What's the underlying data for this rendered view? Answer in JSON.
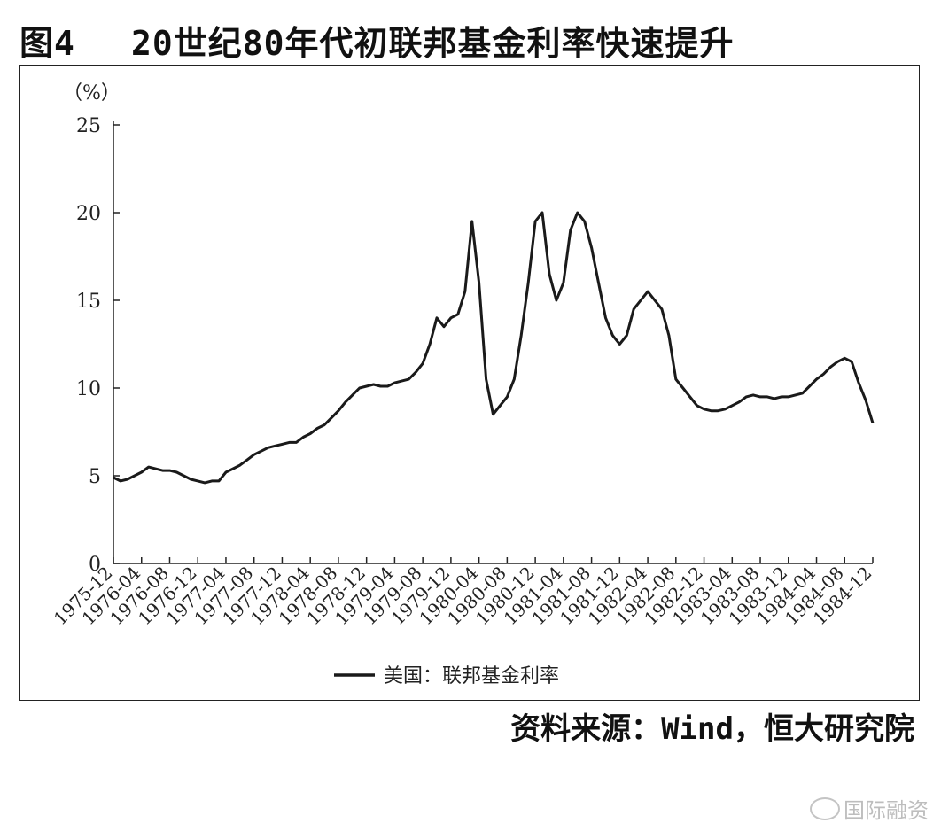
{
  "figure": {
    "label": "图4",
    "title": "20世纪80年代初联邦基金利率快速提升",
    "source": "资料来源：Wind，恒大研究院",
    "watermark": "国际融资"
  },
  "chart_data": {
    "type": "line",
    "title": "20世纪80年代初联邦基金利率快速提升",
    "unit_label": "（%）",
    "ylim": [
      0,
      25
    ],
    "yticks": [
      0,
      5,
      10,
      15,
      20,
      25
    ],
    "x_tick_labels": [
      "1975-12",
      "1976-04",
      "1976-08",
      "1976-12",
      "1977-04",
      "1977-08",
      "1977-12",
      "1978-04",
      "1978-08",
      "1978-12",
      "1979-04",
      "1979-08",
      "1979-12",
      "1980-04",
      "1980-08",
      "1980-12",
      "1981-04",
      "1981-08",
      "1981-12",
      "1982-04",
      "1982-08",
      "1982-12",
      "1983-04",
      "1983-08",
      "1983-12",
      "1984-04",
      "1984-08",
      "1984-12"
    ],
    "legend": {
      "position": "bottom-center"
    },
    "grid": false,
    "series": [
      {
        "name": "美国：联邦基金利率",
        "color": "#1a1a1a",
        "x": [
          "1975-12",
          "1976-01",
          "1976-02",
          "1976-03",
          "1976-04",
          "1976-05",
          "1976-06",
          "1976-07",
          "1976-08",
          "1976-09",
          "1976-10",
          "1976-11",
          "1976-12",
          "1977-01",
          "1977-02",
          "1977-03",
          "1977-04",
          "1977-05",
          "1977-06",
          "1977-07",
          "1977-08",
          "1977-09",
          "1977-10",
          "1977-11",
          "1977-12",
          "1978-01",
          "1978-02",
          "1978-03",
          "1978-04",
          "1978-05",
          "1978-06",
          "1978-07",
          "1978-08",
          "1978-09",
          "1978-10",
          "1978-11",
          "1978-12",
          "1979-01",
          "1979-02",
          "1979-03",
          "1979-04",
          "1979-05",
          "1979-06",
          "1979-07",
          "1979-08",
          "1979-09",
          "1979-10",
          "1979-11",
          "1979-12",
          "1980-01",
          "1980-02",
          "1980-03",
          "1980-04",
          "1980-05",
          "1980-06",
          "1980-07",
          "1980-08",
          "1980-09",
          "1980-10",
          "1980-11",
          "1980-12",
          "1981-01",
          "1981-02",
          "1981-03",
          "1981-04",
          "1981-05",
          "1981-06",
          "1981-07",
          "1981-08",
          "1981-09",
          "1981-10",
          "1981-11",
          "1981-12",
          "1982-01",
          "1982-02",
          "1982-03",
          "1982-04",
          "1982-05",
          "1982-06",
          "1982-07",
          "1982-08",
          "1982-09",
          "1982-10",
          "1982-11",
          "1982-12",
          "1983-01",
          "1983-02",
          "1983-03",
          "1983-04",
          "1983-05",
          "1983-06",
          "1983-07",
          "1983-08",
          "1983-09",
          "1983-10",
          "1983-11",
          "1983-12",
          "1984-01",
          "1984-02",
          "1984-03",
          "1984-04",
          "1984-05",
          "1984-06",
          "1984-07",
          "1984-08",
          "1984-09",
          "1984-10",
          "1984-11",
          "1984-12"
        ],
        "y": [
          4.9,
          4.7,
          4.8,
          5.0,
          5.2,
          5.5,
          5.4,
          5.3,
          5.3,
          5.2,
          5.0,
          4.8,
          4.7,
          4.6,
          4.7,
          4.7,
          5.2,
          5.4,
          5.6,
          5.9,
          6.2,
          6.4,
          6.6,
          6.7,
          6.8,
          6.9,
          6.9,
          7.2,
          7.4,
          7.7,
          7.9,
          8.3,
          8.7,
          9.2,
          9.6,
          10.0,
          10.1,
          10.2,
          10.1,
          10.1,
          10.3,
          10.4,
          10.5,
          10.9,
          11.4,
          12.5,
          14.0,
          13.5,
          14.0,
          14.2,
          15.5,
          19.5,
          16.0,
          10.5,
          8.5,
          9.0,
          9.5,
          10.5,
          13.0,
          16.0,
          19.5,
          20.0,
          16.5,
          15.0,
          16.0,
          19.0,
          20.0,
          19.5,
          18.0,
          16.0,
          14.0,
          13.0,
          12.5,
          13.0,
          14.5,
          15.0,
          15.5,
          15.0,
          14.5,
          13.0,
          10.5,
          10.0,
          9.5,
          9.0,
          8.8,
          8.7,
          8.7,
          8.8,
          9.0,
          9.2,
          9.5,
          9.6,
          9.5,
          9.5,
          9.4,
          9.5,
          9.5,
          9.6,
          9.7,
          10.1,
          10.5,
          10.8,
          11.2,
          11.5,
          11.7,
          11.5,
          10.3,
          9.3,
          8.0
        ]
      }
    ]
  }
}
